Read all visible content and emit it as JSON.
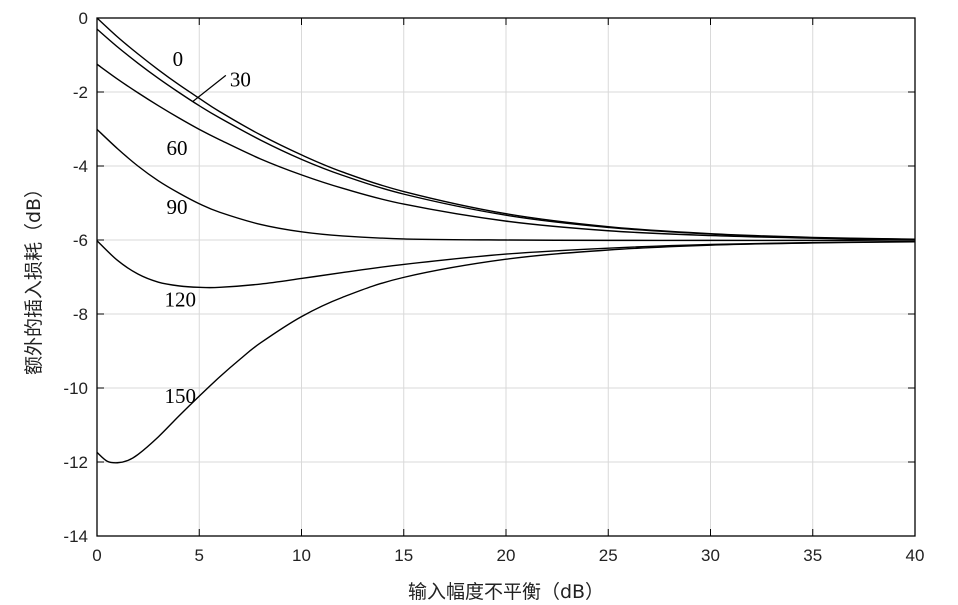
{
  "chart_data": {
    "type": "line",
    "title": "",
    "xlabel": "输入幅度不平衡（dB）",
    "ylabel": "额外的插入损耗（dB）",
    "xlim": [
      0,
      40
    ],
    "ylim": [
      -14,
      0
    ],
    "xticks": [
      0,
      5,
      10,
      15,
      20,
      25,
      30,
      35,
      40
    ],
    "yticks": [
      0,
      -2,
      -4,
      -6,
      -8,
      -10,
      -12,
      -14
    ],
    "grid": true,
    "series": [
      {
        "name": "0",
        "x": [
          0,
          1,
          2,
          3,
          4,
          5,
          6,
          8,
          10,
          12,
          15,
          20,
          25,
          30,
          35,
          40
        ],
        "y": [
          0,
          -0.51,
          -0.97,
          -1.4,
          -1.8,
          -2.17,
          -2.53,
          -3.16,
          -3.7,
          -4.16,
          -4.69,
          -5.29,
          -5.64,
          -5.83,
          -5.93,
          -5.98
        ]
      },
      {
        "name": "30",
        "x": [
          0,
          1,
          2,
          3,
          4,
          5,
          6,
          8,
          10,
          12,
          15,
          20,
          25,
          30,
          35,
          40
        ],
        "y": [
          -0.3,
          -0.78,
          -1.22,
          -1.63,
          -2.01,
          -2.37,
          -2.7,
          -3.3,
          -3.82,
          -4.25,
          -4.76,
          -5.33,
          -5.66,
          -5.84,
          -5.94,
          -5.98
        ]
      },
      {
        "name": "60",
        "x": [
          0,
          1,
          2,
          3,
          4,
          5,
          6,
          8,
          10,
          12,
          15,
          20,
          25,
          30,
          35,
          40
        ],
        "y": [
          -1.25,
          -1.65,
          -2.02,
          -2.37,
          -2.7,
          -3.01,
          -3.29,
          -3.81,
          -4.24,
          -4.6,
          -5.03,
          -5.49,
          -5.75,
          -5.88,
          -5.95,
          -5.99
        ]
      },
      {
        "name": "90",
        "x": [
          0,
          1,
          2,
          3,
          4,
          5,
          6,
          8,
          10,
          12,
          15,
          20,
          25,
          30,
          35,
          40
        ],
        "y": [
          -3.01,
          -3.53,
          -4.0,
          -4.4,
          -4.73,
          -5.02,
          -5.25,
          -5.58,
          -5.78,
          -5.89,
          -5.97,
          -6.0,
          -6.01,
          -6.01,
          -6.01,
          -6.0
        ]
      },
      {
        "name": "120",
        "x": [
          0,
          1,
          2,
          3,
          4,
          5,
          6,
          8,
          10,
          12,
          15,
          20,
          25,
          30,
          35,
          40
        ],
        "y": [
          -6.02,
          -6.55,
          -6.92,
          -7.14,
          -7.24,
          -7.28,
          -7.28,
          -7.19,
          -7.04,
          -6.88,
          -6.66,
          -6.38,
          -6.22,
          -6.12,
          -6.07,
          -6.04
        ]
      },
      {
        "name": "150",
        "x": [
          0,
          0.5,
          1,
          1.5,
          2,
          3,
          4,
          5,
          6,
          7,
          8,
          10,
          12,
          15,
          20,
          25,
          30,
          35,
          40
        ],
        "y": [
          -11.74,
          -11.98,
          -12.02,
          -11.96,
          -11.8,
          -11.32,
          -10.76,
          -10.22,
          -9.7,
          -9.22,
          -8.78,
          -8.07,
          -7.55,
          -7.01,
          -6.52,
          -6.27,
          -6.14,
          -6.08,
          -6.05
        ]
      }
    ],
    "curve_labels": [
      {
        "text": "0",
        "x": 3.7,
        "y": -1.3
      },
      {
        "text": "30",
        "x": 6.5,
        "y": -1.85
      },
      {
        "text": "60",
        "x": 3.4,
        "y": -3.7
      },
      {
        "text": "90",
        "x": 3.4,
        "y": -5.3
      },
      {
        "text": "120",
        "x": 3.3,
        "y": -7.8
      },
      {
        "text": "150",
        "x": 3.3,
        "y": -10.4
      }
    ]
  }
}
